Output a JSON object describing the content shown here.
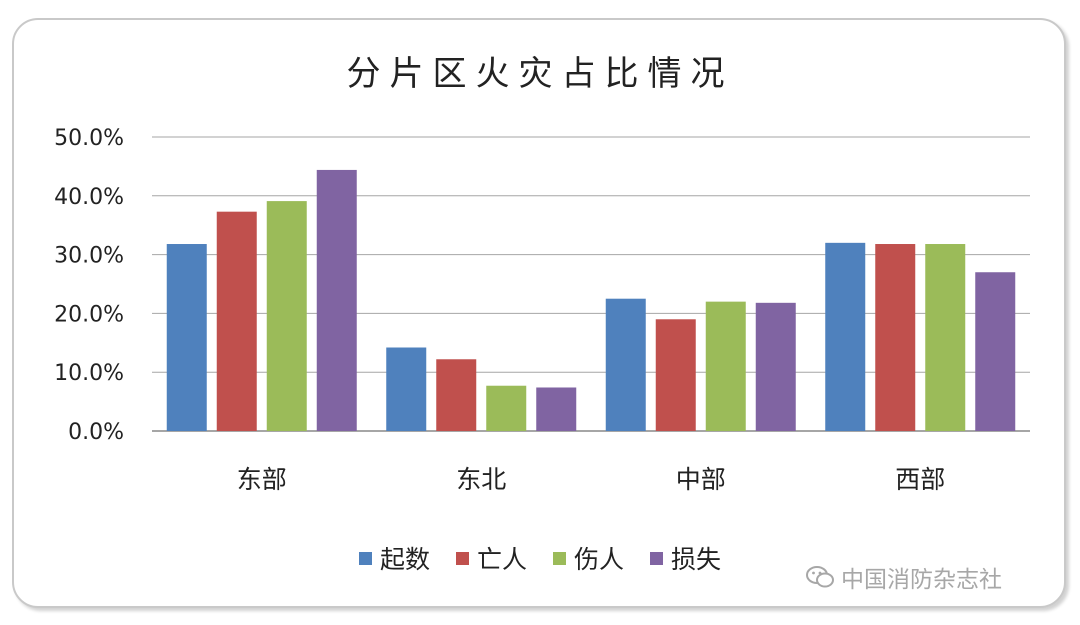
{
  "chart_data": {
    "type": "bar",
    "title": "分片区火灾占比情况",
    "categories": [
      "东部",
      "东北",
      "中部",
      "西部"
    ],
    "series": [
      {
        "name": "起数",
        "color": "#4f81bd",
        "values": [
          31.8,
          14.2,
          22.5,
          32.0
        ]
      },
      {
        "name": "亡人",
        "color": "#c0504d",
        "values": [
          37.3,
          12.2,
          19.0,
          31.8
        ]
      },
      {
        "name": "伤人",
        "color": "#9bbb59",
        "values": [
          39.1,
          7.7,
          22.0,
          31.8
        ]
      },
      {
        "name": "损失",
        "color": "#8064a2",
        "values": [
          44.4,
          7.4,
          21.8,
          27.0
        ]
      }
    ],
    "yticks": [
      "0.0%",
      "10.0%",
      "20.0%",
      "30.0%",
      "40.0%",
      "50.0%"
    ],
    "ylim": [
      0,
      50
    ],
    "grid": true,
    "legend_position": "bottom"
  },
  "watermark": {
    "text": "中国消防杂志社",
    "icon": "wechat-icon"
  }
}
